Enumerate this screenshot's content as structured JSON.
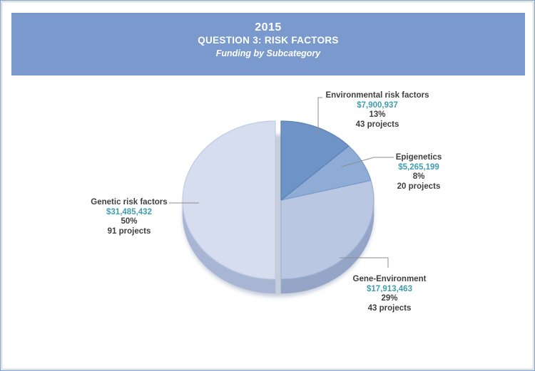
{
  "header": {
    "year": "2015",
    "title": "QUESTION 3: RISK FACTORS",
    "subtitle": "Funding by Subcategory",
    "bg_color": "#7A9ACD",
    "text_color": "#FFFFFF"
  },
  "chart_data": {
    "type": "pie",
    "title": "2015 QUESTION 3: RISK FACTORS — Funding by Subcategory",
    "clockwise": true,
    "start_angle_deg": 0,
    "legend_position": "callouts",
    "value_color": "#3E9EB0",
    "label_color": "#3F3F3F",
    "leader_line_color": "#8D8D8D",
    "slices": [
      {
        "label": "Environmental risk factors",
        "amount": "$7,900,937",
        "percent": 13,
        "percent_label": "13%",
        "projects": 43,
        "projects_label": "43 projects",
        "color": "#6E93C7",
        "edge_color": "#5C82B8",
        "side_color": "#7F94BC"
      },
      {
        "label": "Epigenetics",
        "amount": "$5,265,199",
        "percent": 8,
        "percent_label": "8%",
        "projects": 20,
        "projects_label": "20 projects",
        "color": "#8FACD7",
        "edge_color": "#7B9BCB",
        "side_color": "#8BA0C6"
      },
      {
        "label": "Gene-Environment",
        "amount": "$17,913,463",
        "percent": 29,
        "percent_label": "29%",
        "projects": 43,
        "projects_label": "43 projects",
        "color": "#B9C7E3",
        "edge_color": "#9FB2D4",
        "side_color": "#94A5C7"
      },
      {
        "label": "Genetic risk factors",
        "amount": "$31,485,432",
        "percent": 50,
        "percent_label": "50%",
        "projects": 91,
        "projects_label": "91 projects",
        "color": "#D5DDEF",
        "edge_color": "#C2CDE5",
        "side_color": "#A9B6D3"
      }
    ]
  }
}
